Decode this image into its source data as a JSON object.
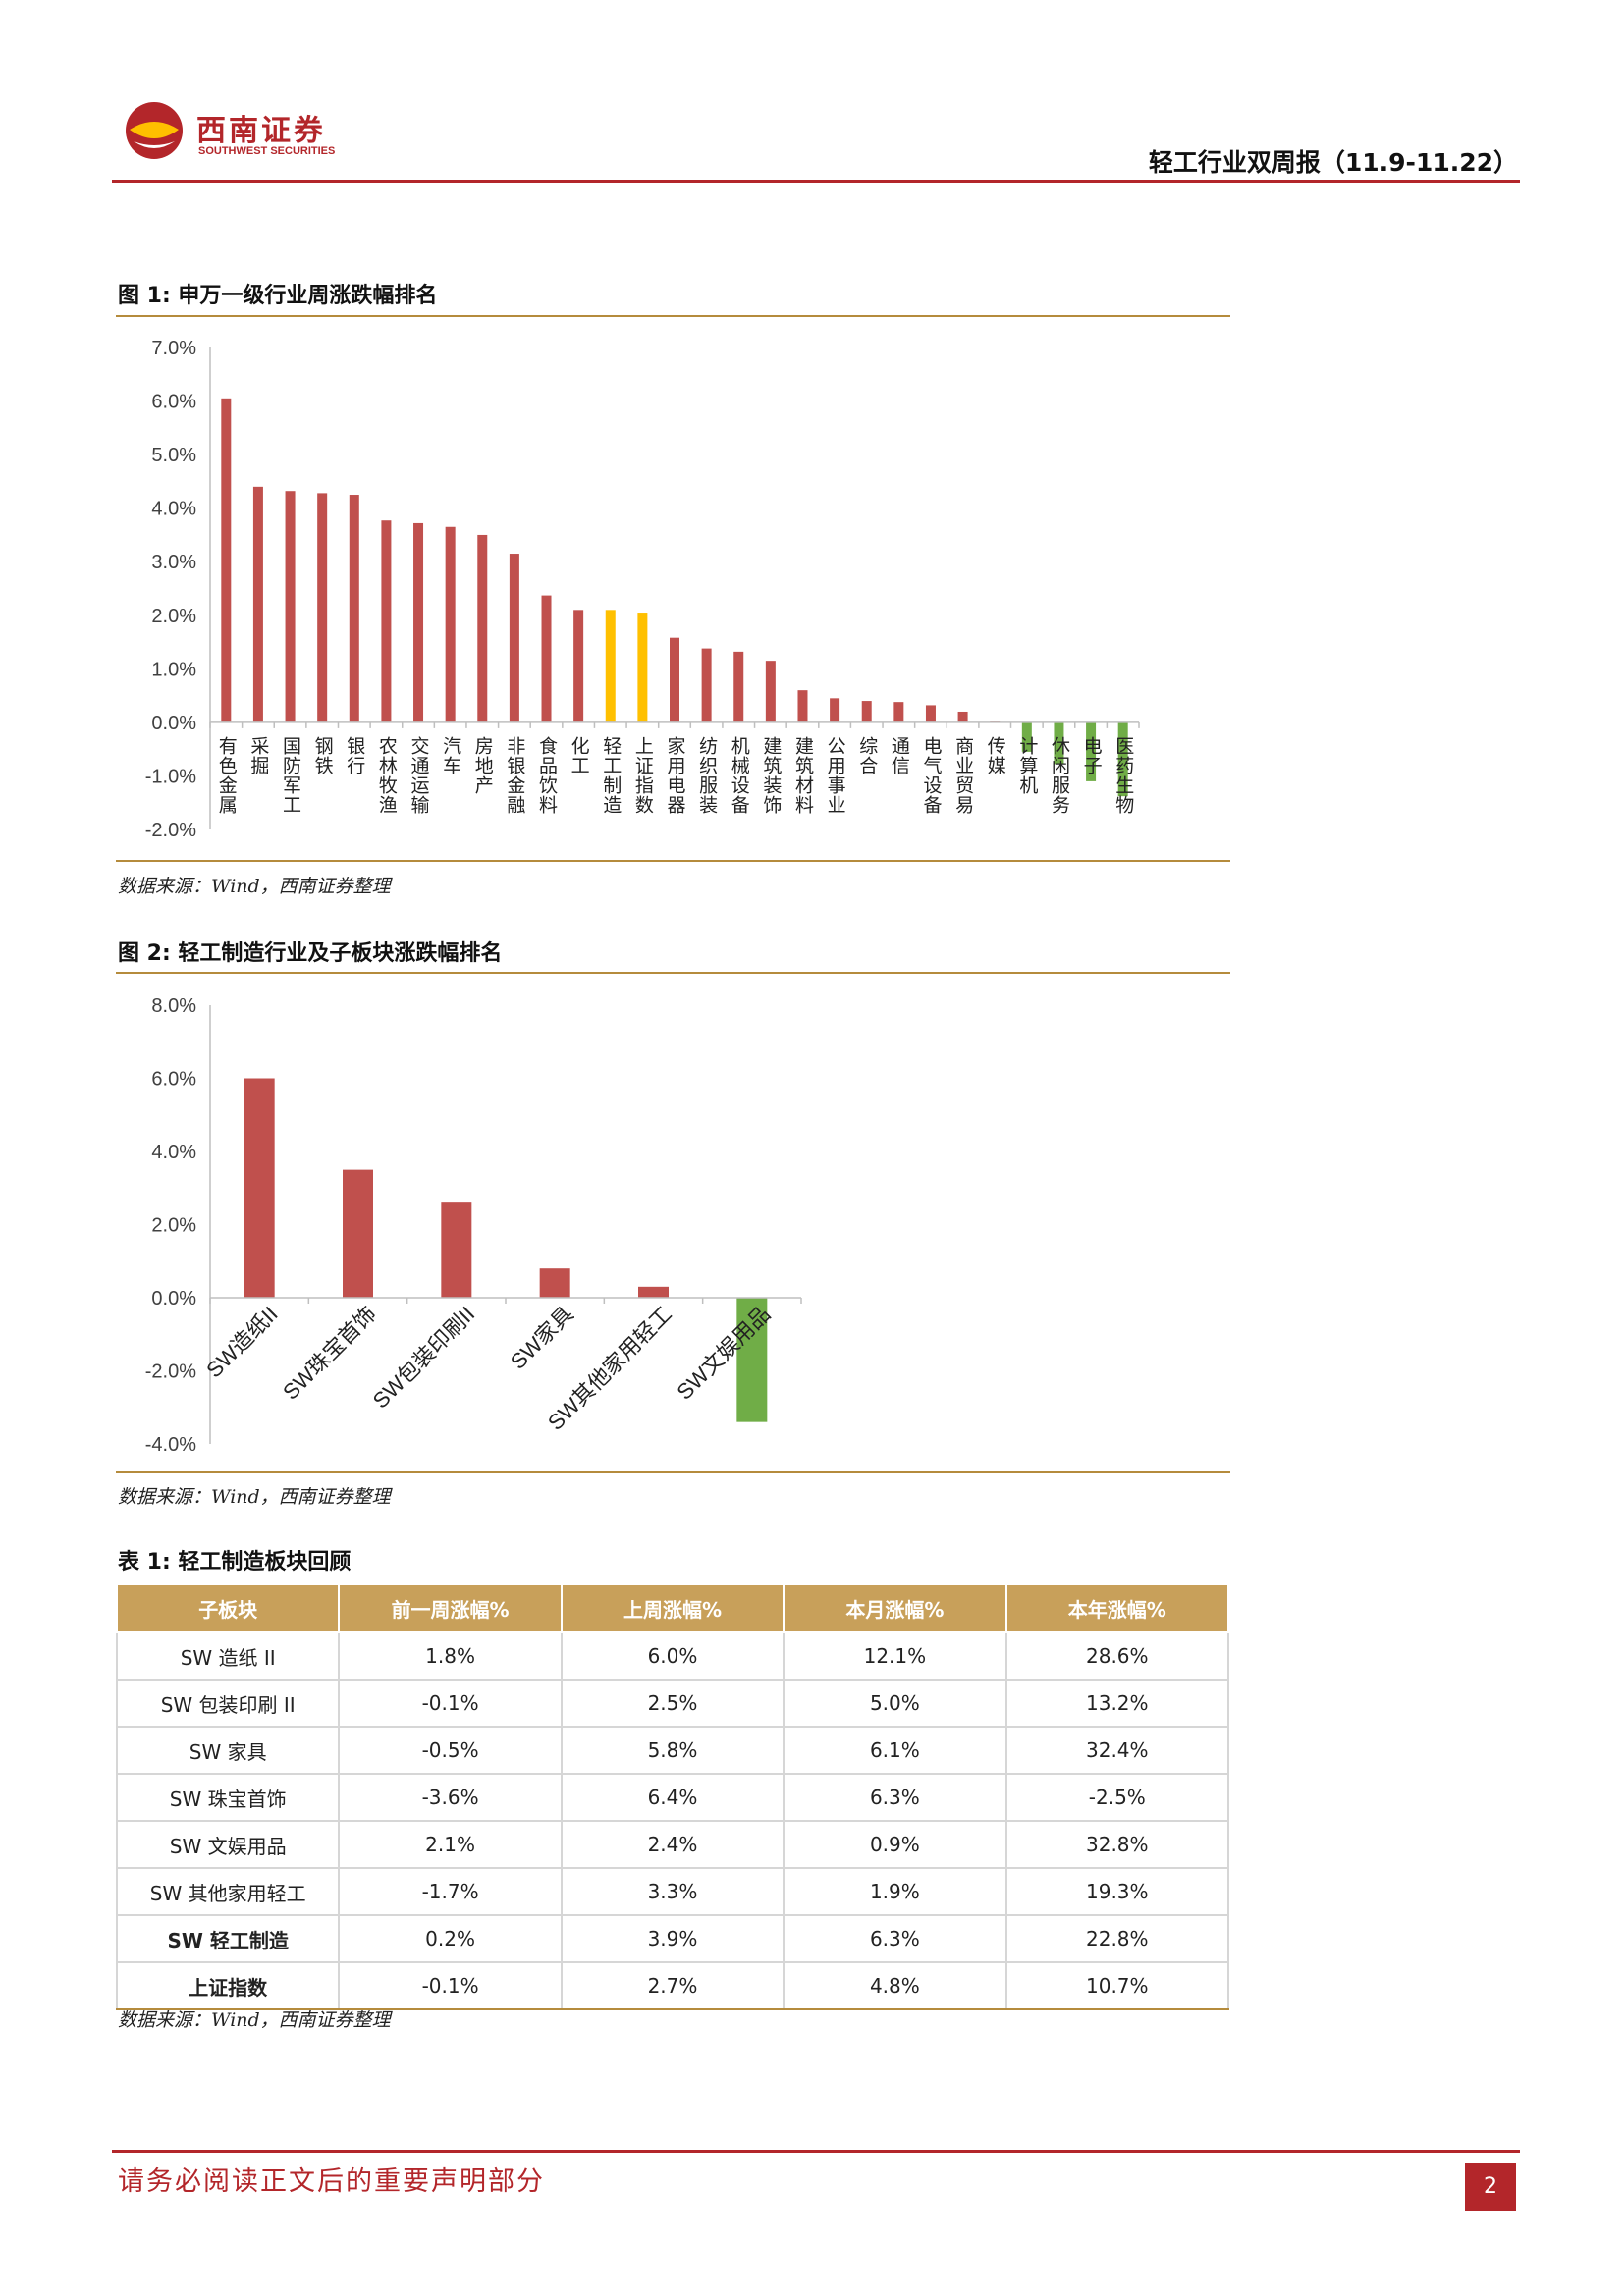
{
  "header": {
    "brand_cn": "西南证券",
    "brand_en": "SOUTHWEST SECURITIES",
    "report_title": "轻工行业双周报（11.9-11.22）"
  },
  "figure1": {
    "title": "图 1:  申万一级行业周涨跌幅排名",
    "source": "数据来源：Wind，西南证券整理"
  },
  "figure2": {
    "title": "图 2:  轻工制造行业及子板块涨跌幅排名",
    "source": "数据来源：Wind，西南证券整理"
  },
  "table1": {
    "title": "表 1:  轻工制造板块回顾",
    "source": "数据来源：Wind，西南证券整理",
    "headers": [
      "子板块",
      "前一周涨幅%",
      "上周涨幅%",
      "本月涨幅%",
      "本年涨幅%"
    ],
    "rows": [
      [
        "SW 造纸 II",
        "1.8%",
        "6.0%",
        "12.1%",
        "28.6%"
      ],
      [
        "SW 包装印刷 II",
        "-0.1%",
        "2.5%",
        "5.0%",
        "13.2%"
      ],
      [
        "SW  家具",
        "-0.5%",
        "5.8%",
        "6.1%",
        "32.4%"
      ],
      [
        "SW  珠宝首饰",
        "-3.6%",
        "6.4%",
        "6.3%",
        "-2.5%"
      ],
      [
        "SW  文娱用品",
        "2.1%",
        "2.4%",
        "0.9%",
        "32.8%"
      ],
      [
        "SW  其他家用轻工",
        "-1.7%",
        "3.3%",
        "1.9%",
        "19.3%"
      ],
      [
        "SW 轻工制造",
        "0.2%",
        "3.9%",
        "6.3%",
        "22.8%"
      ],
      [
        "上证指数",
        "-0.1%",
        "2.7%",
        "4.8%",
        "10.7%"
      ]
    ]
  },
  "footer": {
    "disclaimer": "请务必阅读正文后的重要声明部分",
    "page_number": "2"
  },
  "chart_data": [
    {
      "type": "bar",
      "ylim": [
        -2.0,
        7.0
      ],
      "yticks": [
        "7.0%",
        "6.0%",
        "5.0%",
        "4.0%",
        "3.0%",
        "2.0%",
        "1.0%",
        "0.0%",
        "-1.0%",
        "-2.0%"
      ],
      "categories": [
        "有色金属",
        "采掘",
        "国防军工",
        "钢铁",
        "银行",
        "农林牧渔",
        "交通运输",
        "汽车",
        "房地产",
        "非银金融",
        "食品饮料",
        "化工",
        "轻工制造",
        "上证指数",
        "家用电器",
        "纺织服装",
        "机械设备",
        "建筑装饰",
        "建筑材料",
        "公用事业",
        "综合",
        "通信",
        "电气设备",
        "商业贸易",
        "传媒",
        "计算机",
        "休闲服务",
        "电子",
        "医药生物"
      ],
      "values": [
        6.05,
        4.4,
        4.32,
        4.28,
        4.25,
        3.77,
        3.72,
        3.65,
        3.5,
        3.15,
        2.37,
        2.1,
        2.1,
        2.05,
        1.58,
        1.38,
        1.32,
        1.15,
        0.6,
        0.45,
        0.4,
        0.38,
        0.32,
        0.2,
        0.02,
        -0.55,
        -0.78,
        -1.1,
        -1.38
      ],
      "colors": {
        "up": "#c0504d",
        "highlight": "#ffc000",
        "down": "#70ad47"
      },
      "highlight_categories": [
        "轻工制造",
        "上证指数"
      ]
    },
    {
      "type": "bar",
      "ylim": [
        -4.0,
        8.0
      ],
      "yticks": [
        "8.0%",
        "6.0%",
        "4.0%",
        "2.0%",
        "0.0%",
        "-2.0%",
        "-4.0%"
      ],
      "categories": [
        "SW造纸II",
        "SW珠宝首饰",
        "SW包装印刷II",
        "SW家具",
        "SW其他家用轻工",
        "SW文娱用品"
      ],
      "values": [
        6.0,
        3.5,
        2.6,
        0.8,
        0.3,
        -3.4
      ],
      "colors": {
        "up": "#c0504d",
        "down": "#70ad47"
      }
    }
  ]
}
